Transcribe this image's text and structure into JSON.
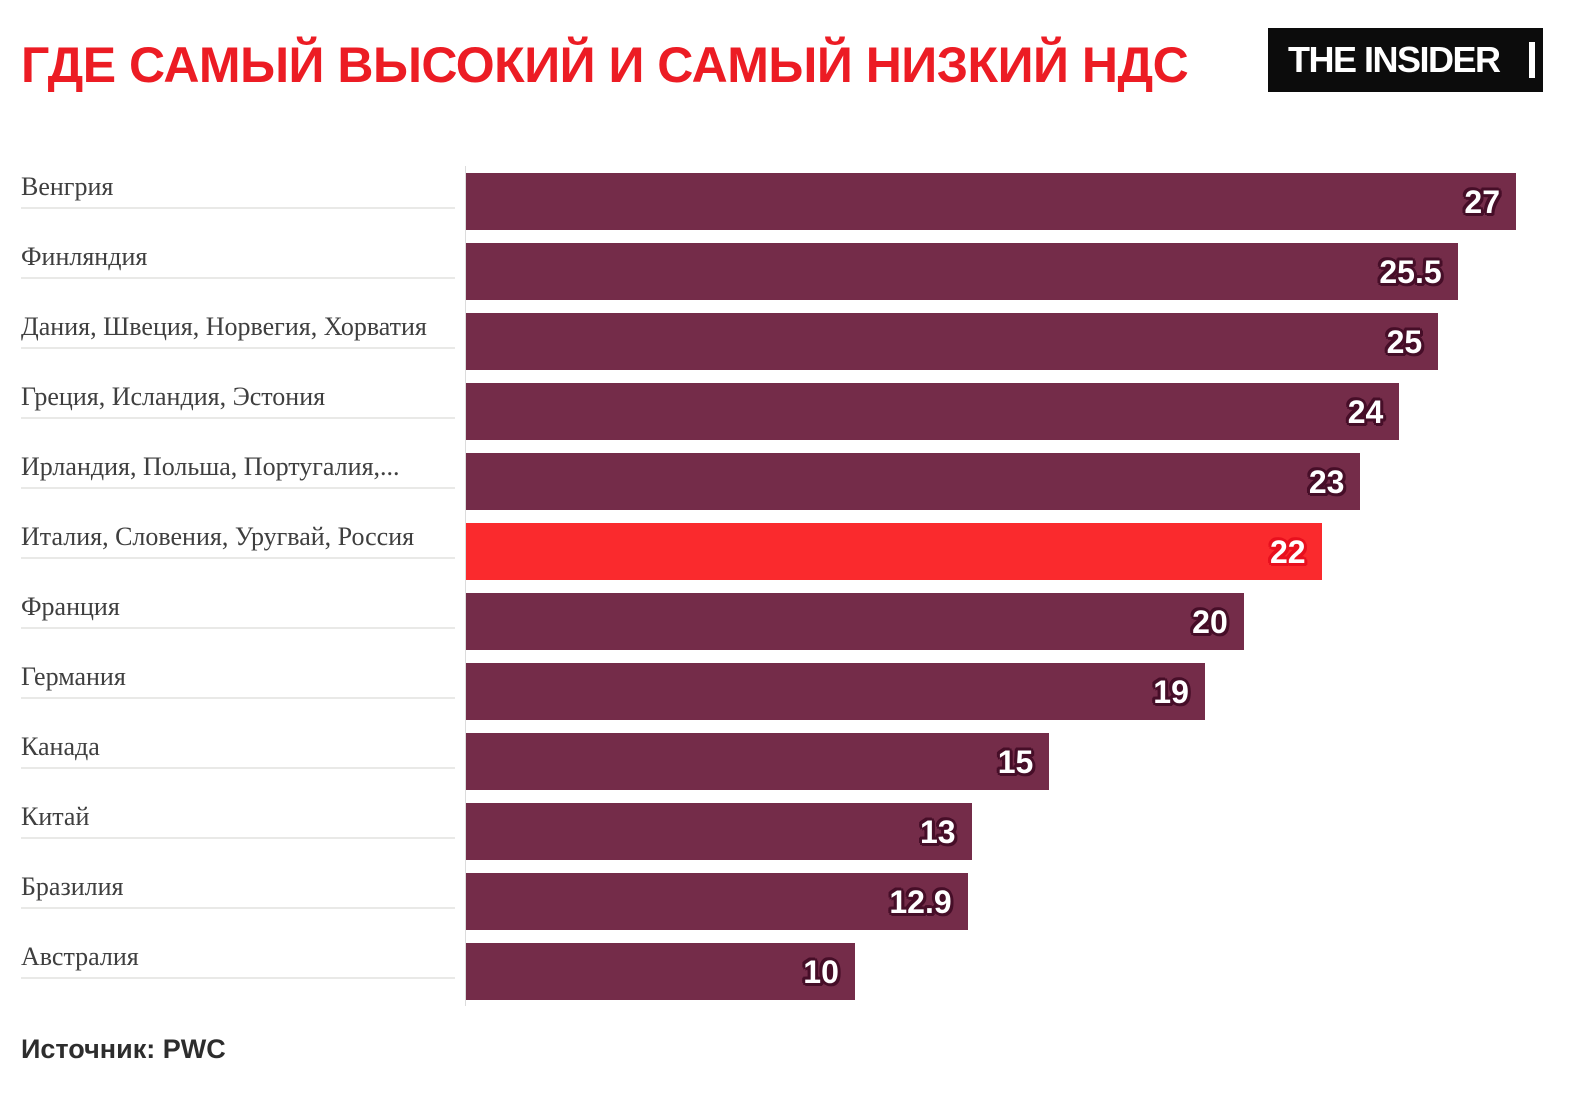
{
  "header": {
    "title": "ГДЕ САМЫЙ ВЫСОКИЙ И САМЫЙ НИЗКИЙ НДС",
    "title_color": "#EC1C24",
    "logo_text": "THE INSIDER"
  },
  "footer": {
    "source": "Источник: PWC"
  },
  "chart_data": {
    "type": "bar",
    "orientation": "horizontal",
    "title": "ГДЕ САМЫЙ ВЫСОКИЙ И САМЫЙ НИЗКИЙ НДС",
    "categories": [
      "Венгрия",
      "Финляндия",
      "Дания, Швеция, Норвегия, Хорватия",
      "Греция, Исландия, Эстония",
      "Ирландия, Польша, Португалия,...",
      "Италия, Словения, Уругвай, Россия",
      "Франция",
      "Германия",
      "Канада",
      "Китай",
      "Бразилия",
      "Австралия"
    ],
    "values": [
      27,
      25.5,
      25,
      24,
      23,
      22,
      20,
      19,
      15,
      13,
      12.9,
      10
    ],
    "value_labels": [
      "27",
      "25.5",
      "25",
      "24",
      "23",
      "22",
      "20",
      "19",
      "15",
      "13",
      "12.9",
      "10"
    ],
    "highlight_index": 5,
    "bar_color": "#742C49",
    "highlight_color": "#FA2A2D",
    "value_label_color": "#FFFFFF",
    "xlim": [
      0,
      28.8
    ],
    "grid": false,
    "legend": false,
    "xlabel": "",
    "ylabel": ""
  }
}
